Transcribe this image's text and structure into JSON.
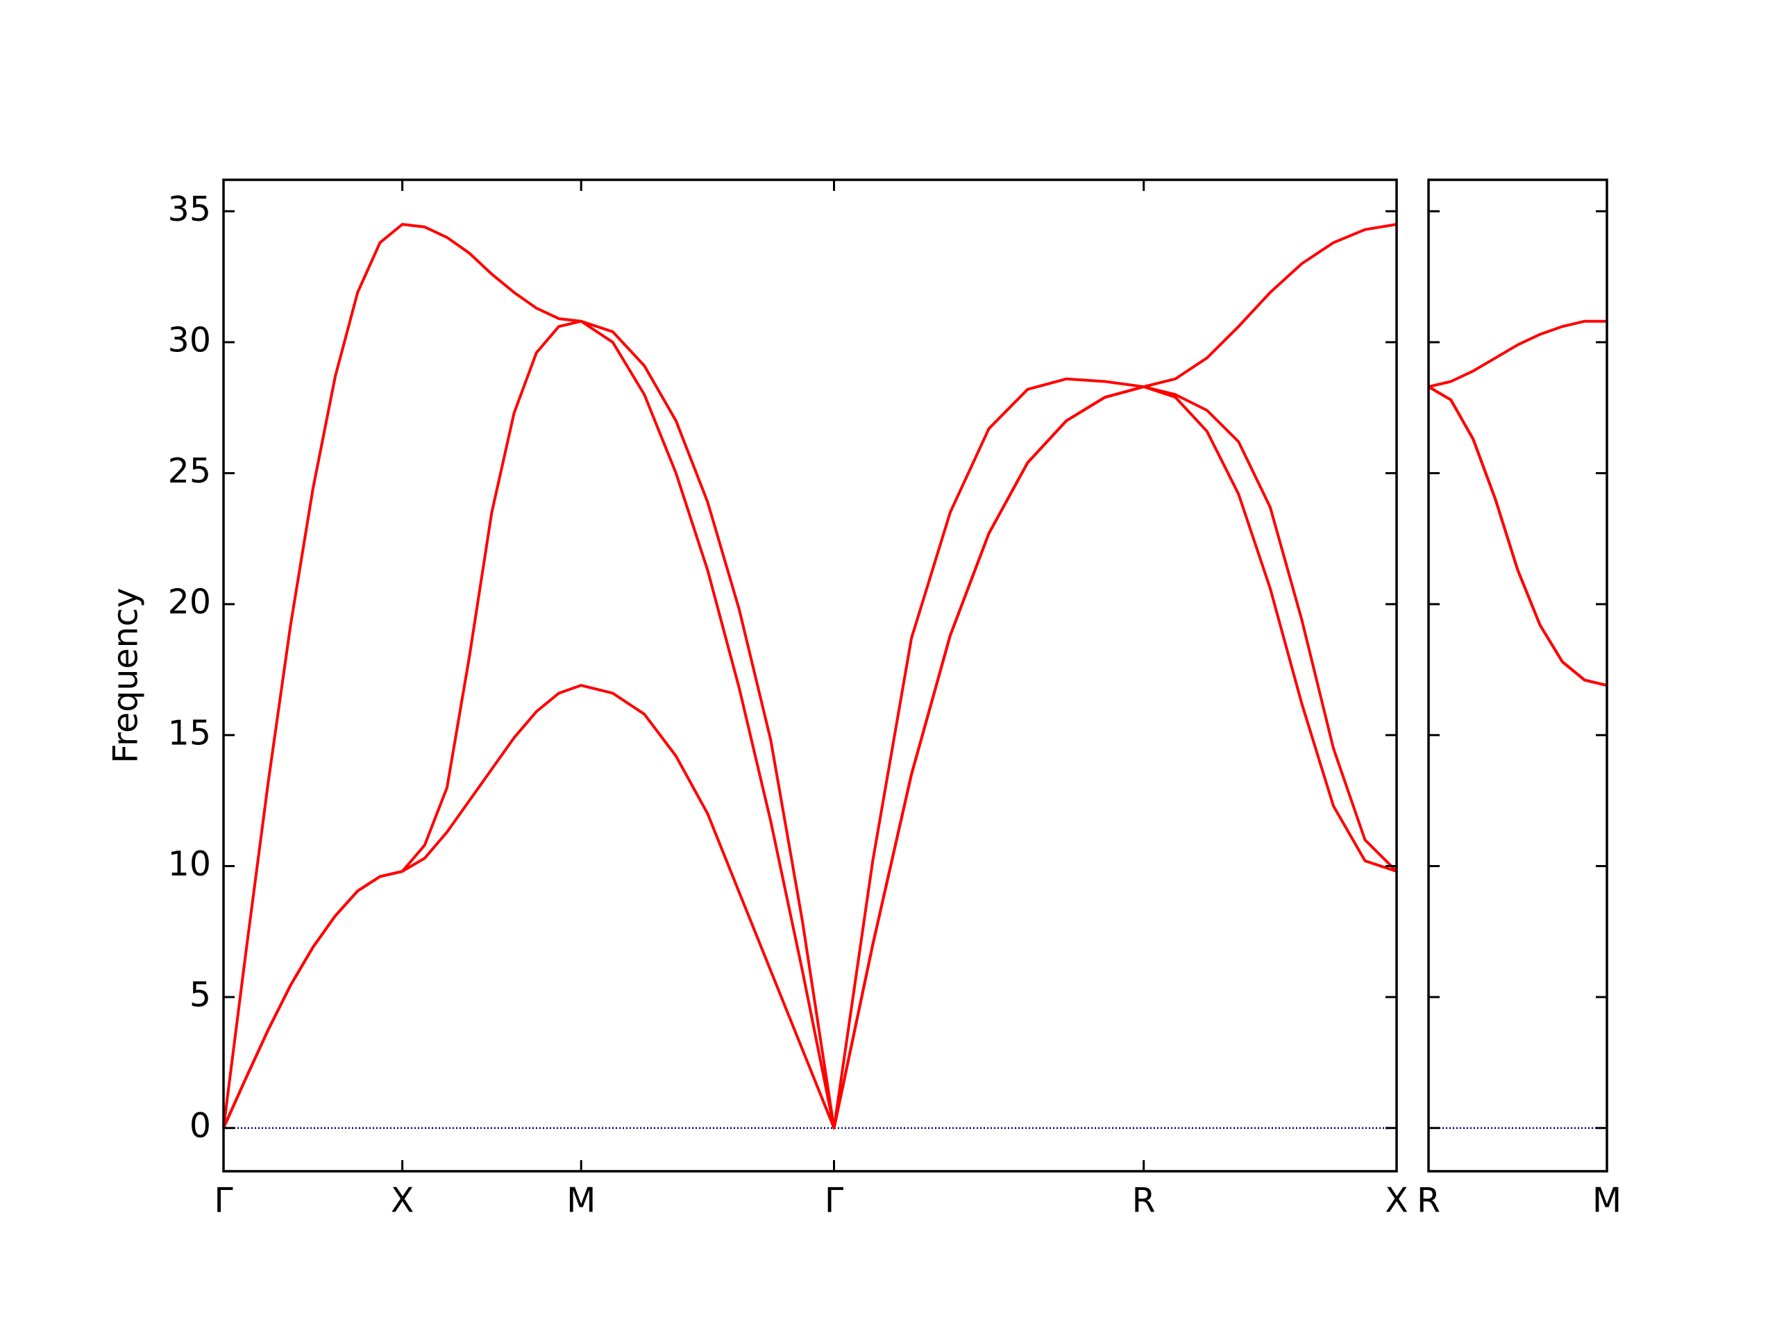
{
  "chart_data": [
    {
      "type": "line",
      "ylabel": "Frequency",
      "x": [
        0,
        0.0625,
        0.125,
        0.1875,
        0.25,
        0.3125,
        0.375,
        0.4375,
        0.5,
        0.5625,
        0.625,
        0.6875,
        0.75,
        0.8125,
        0.875,
        0.9375,
        1.0,
        1.0884,
        1.1768,
        1.2652,
        1.3536,
        1.4419,
        1.5303,
        1.6187,
        1.7071,
        1.8154,
        1.9236,
        2.0319,
        2.1401,
        2.2484,
        2.3567,
        2.4649,
        2.5731,
        2.6615,
        2.7499,
        2.8383,
        2.9267,
        3.0151,
        3.1034,
        3.1918,
        3.2802
      ],
      "series": [
        {
          "color": "#ff0000",
          "values": [
            0,
            1.9,
            3.75,
            5.45,
            6.9,
            8.1,
            9.05,
            9.6,
            9.8,
            10.3,
            11.3,
            12.5,
            13.7,
            14.9,
            15.9,
            16.6,
            16.9,
            16.6,
            15.8,
            14.2,
            12.0,
            9.0,
            6.0,
            3.0,
            0,
            7.0,
            13.5,
            18.8,
            22.7,
            25.4,
            27.0,
            27.9,
            28.3,
            27.9,
            26.6,
            24.2,
            20.6,
            16.2,
            12.3,
            10.2,
            9.8
          ]
        },
        {
          "color": "#ff0000",
          "values": [
            0,
            1.9,
            3.75,
            5.45,
            6.9,
            8.1,
            9.05,
            9.6,
            9.8,
            10.8,
            13.0,
            18.0,
            23.5,
            27.3,
            29.6,
            30.6,
            30.8,
            30.0,
            28.0,
            25.0,
            21.3,
            16.8,
            11.7,
            6.0,
            0,
            7.0,
            13.5,
            18.8,
            22.7,
            25.4,
            27.0,
            27.9,
            28.3,
            28.0,
            27.4,
            26.2,
            23.7,
            19.4,
            14.5,
            11.0,
            9.8
          ]
        },
        {
          "color": "#ff0000",
          "values": [
            0,
            6.7,
            13.2,
            19.2,
            24.4,
            28.7,
            31.9,
            33.8,
            34.5,
            34.4,
            34.0,
            33.4,
            32.6,
            31.9,
            31.3,
            30.9,
            30.8,
            30.4,
            29.1,
            27.0,
            23.9,
            19.8,
            14.8,
            7.9,
            0,
            10.2,
            18.7,
            23.5,
            26.7,
            28.2,
            28.6,
            28.5,
            28.3,
            28.6,
            29.4,
            30.6,
            31.9,
            33.0,
            33.8,
            34.3,
            34.5
          ]
        }
      ],
      "xlim": [
        0,
        3.2802
      ],
      "xticks": [
        {
          "value": 0,
          "label": "Γ"
        },
        {
          "value": 0.5,
          "label": "X"
        },
        {
          "value": 1.0,
          "label": "M"
        },
        {
          "value": 1.7071,
          "label": "Γ"
        },
        {
          "value": 2.5731,
          "label": "R"
        },
        {
          "value": 3.2802,
          "label": "X"
        }
      ],
      "ylim": [
        -1.65,
        36.2
      ],
      "yticks": [
        0,
        5,
        10,
        15,
        20,
        25,
        30,
        35
      ],
      "show_ytick_labels": true,
      "reference_line": {
        "value": 0,
        "color": "#00008b"
      }
    },
    {
      "type": "line",
      "x": [
        0,
        0.0625,
        0.125,
        0.1875,
        0.25,
        0.3125,
        0.375,
        0.4375,
        0.5
      ],
      "series": [
        {
          "color": "#ff0000",
          "values": [
            28.3,
            27.8,
            26.3,
            24.0,
            21.3,
            19.2,
            17.8,
            17.1,
            16.9
          ]
        },
        {
          "color": "#ff0000",
          "values": [
            28.3,
            27.8,
            26.3,
            24.0,
            21.3,
            19.2,
            17.8,
            17.1,
            16.9
          ]
        },
        {
          "color": "#ff0000",
          "values": [
            28.3,
            28.5,
            28.9,
            29.4,
            29.9,
            30.3,
            30.6,
            30.8,
            30.8
          ]
        }
      ],
      "xlim": [
        0,
        0.5
      ],
      "xticks": [
        {
          "value": 0,
          "label": "R"
        },
        {
          "value": 0.5,
          "label": "M"
        }
      ],
      "ylim": [
        -1.65,
        36.2
      ],
      "yticks": [
        0,
        5,
        10,
        15,
        20,
        25,
        30,
        35
      ],
      "show_ytick_labels": false,
      "reference_line": {
        "value": 0,
        "color": "#00008b"
      }
    }
  ]
}
